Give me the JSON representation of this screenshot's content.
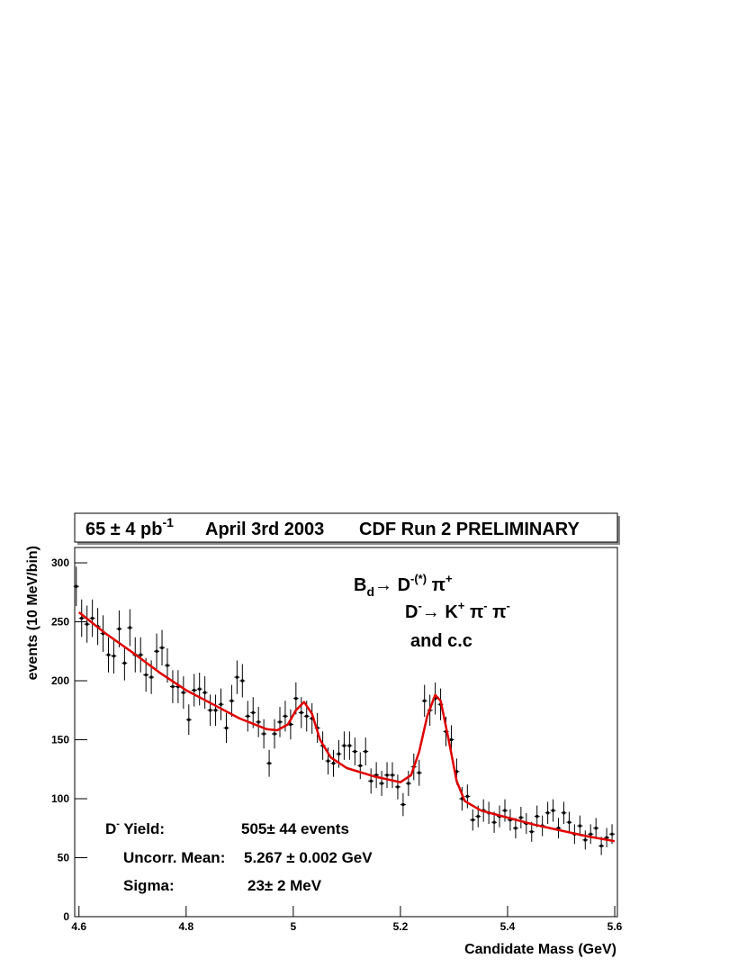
{
  "chart_data": {
    "type": "errorbar",
    "title_parts": [
      "65 ± 4 pb",
      "-1",
      "April 3rd 2003",
      "CDF Run 2 PRELIMINARY"
    ],
    "x_label": "Candidate Mass (GeV)",
    "y_label": "events (10 MeV/bin)",
    "xlim": [
      4.592,
      5.605
    ],
    "ylim": [
      0,
      313
    ],
    "xticks": [
      4.6,
      4.8,
      5,
      5.2,
      5.4,
      5.6
    ],
    "yticks": [
      0,
      50,
      100,
      150,
      200,
      250,
      300
    ],
    "bin_width": 0.01,
    "x": [
      4.595,
      4.605,
      4.615,
      4.625,
      4.635,
      4.645,
      4.655,
      4.665,
      4.675,
      4.685,
      4.695,
      4.705,
      4.715,
      4.725,
      4.735,
      4.745,
      4.755,
      4.765,
      4.775,
      4.785,
      4.795,
      4.805,
      4.815,
      4.825,
      4.835,
      4.845,
      4.855,
      4.865,
      4.875,
      4.885,
      4.895,
      4.905,
      4.915,
      4.925,
      4.935,
      4.945,
      4.955,
      4.965,
      4.975,
      4.985,
      4.995,
      5.005,
      5.015,
      5.025,
      5.035,
      5.045,
      5.055,
      5.065,
      5.075,
      5.085,
      5.095,
      5.105,
      5.115,
      5.125,
      5.135,
      5.145,
      5.155,
      5.165,
      5.175,
      5.185,
      5.195,
      5.205,
      5.215,
      5.225,
      5.235,
      5.245,
      5.255,
      5.265,
      5.275,
      5.285,
      5.295,
      5.305,
      5.315,
      5.325,
      5.335,
      5.345,
      5.355,
      5.365,
      5.375,
      5.385,
      5.395,
      5.405,
      5.415,
      5.425,
      5.435,
      5.445,
      5.455,
      5.465,
      5.475,
      5.485,
      5.495,
      5.505,
      5.515,
      5.525,
      5.535,
      5.545,
      5.555,
      5.565,
      5.575,
      5.585,
      5.595
    ],
    "series": [
      {
        "color": "#000000",
        "values": [
          280,
          253,
          248,
          253,
          246,
          240,
          222,
          221,
          244,
          215,
          245,
          222,
          222,
          205,
          203,
          225,
          228,
          213,
          195,
          195,
          190,
          167,
          192,
          193,
          190,
          175,
          175,
          180,
          160,
          183,
          203,
          200,
          170,
          173,
          165,
          155,
          130,
          155,
          165,
          170,
          163,
          185,
          173,
          170,
          168,
          160,
          145,
          132,
          130,
          138,
          145,
          145,
          140,
          128,
          140,
          115,
          120,
          113,
          120,
          120,
          110,
          95,
          113,
          127,
          122,
          183,
          175,
          185,
          180,
          157,
          150,
          123,
          100,
          102,
          82,
          85,
          90,
          88,
          80,
          85,
          90,
          82,
          75,
          84,
          79,
          72,
          85,
          77,
          88,
          90,
          75,
          88,
          80,
          70,
          77,
          65,
          70,
          75,
          60,
          67,
          70
        ]
      }
    ],
    "fit": {
      "color": "#e00000",
      "x": [
        4.6,
        4.65,
        4.7,
        4.75,
        4.8,
        4.85,
        4.9,
        4.95,
        4.97,
        4.99,
        5.005,
        5.02,
        5.035,
        5.05,
        5.07,
        5.1,
        5.15,
        5.2,
        5.22,
        5.235,
        5.25,
        5.265,
        5.275,
        5.29,
        5.305,
        5.32,
        5.35,
        5.4,
        5.45,
        5.5,
        5.55,
        5.6
      ],
      "values": [
        258,
        240,
        224,
        207,
        192,
        180,
        168,
        159,
        158,
        163,
        175,
        182,
        172,
        150,
        135,
        126,
        119,
        114,
        120,
        140,
        170,
        188,
        183,
        150,
        115,
        98,
        90,
        84,
        78,
        73,
        68,
        64
      ]
    },
    "decay_line1": [
      "B",
      "d",
      "→ D",
      "-(*)",
      " π",
      "+"
    ],
    "decay_line2": [
      "D",
      "-",
      "→ K",
      "+",
      " π",
      "-",
      " π",
      "-"
    ],
    "decay_line3": "and c.c",
    "yield_label": [
      "D",
      "-",
      " Yield:"
    ],
    "yield_value": "505± 44 events",
    "mean_label": "Uncorr. Mean:",
    "mean_value": "5.267 ± 0.002 GeV",
    "sigma_label": "Sigma:",
    "sigma_value": "23± 2 MeV"
  }
}
